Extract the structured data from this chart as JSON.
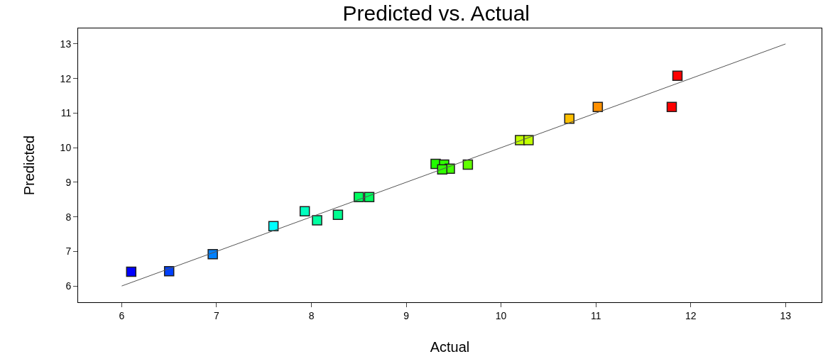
{
  "chart_data": {
    "type": "scatter",
    "title": "Predicted vs. Actual",
    "xlabel": "Actual",
    "ylabel": "Predicted",
    "xlim": [
      5.54,
      13.38
    ],
    "ylim": [
      5.53,
      13.45
    ],
    "xticks": [
      6,
      7,
      8,
      9,
      10,
      11,
      12,
      13
    ],
    "yticks": [
      6,
      7,
      8,
      9,
      10,
      11,
      12,
      13
    ],
    "series": [
      {
        "marker": "square",
        "x": [
          6.1,
          6.5,
          6.96,
          7.6,
          7.93,
          8.06,
          8.28,
          8.5,
          8.61,
          9.31,
          9.4,
          9.46,
          9.38,
          9.65,
          10.2,
          10.29,
          10.72,
          11.02,
          11.8,
          11.86
        ],
        "values": [
          6.41,
          6.43,
          6.92,
          7.73,
          8.16,
          7.9,
          8.06,
          8.57,
          8.57,
          9.53,
          9.51,
          9.39,
          9.37,
          9.51,
          10.22,
          10.22,
          10.84,
          11.18,
          11.18,
          12.08
        ],
        "colors": [
          "#0000ff",
          "#0040ff",
          "#0080ff",
          "#00ffff",
          "#00ffbf",
          "#00ffa0",
          "#00ff90",
          "#00ff60",
          "#00ff60",
          "#20ff00",
          "#30ff00",
          "#40ff00",
          "#30ff00",
          "#60ff00",
          "#c0ff00",
          "#c0ff00",
          "#ffc000",
          "#ff9000",
          "#ff0000",
          "#ff0000"
        ]
      },
      {
        "type": "line",
        "x": [
          6,
          13
        ],
        "values": [
          6,
          13
        ],
        "color": "#555555",
        "line_style": "solid",
        "marker": "none"
      }
    ]
  }
}
